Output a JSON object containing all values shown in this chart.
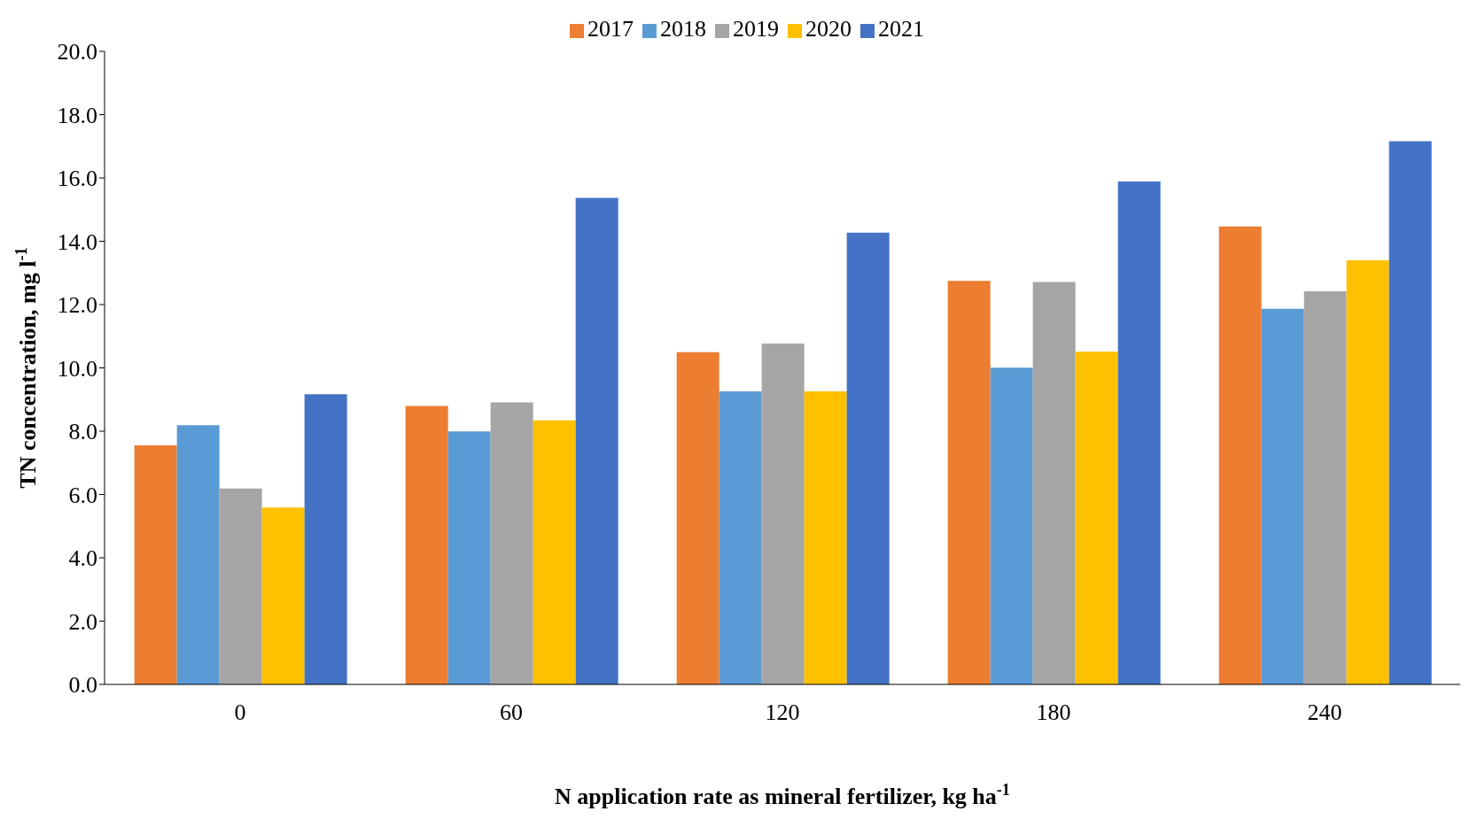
{
  "chart_data": {
    "type": "bar",
    "xlabel": "N application rate as mineral fertilizer, kg ha$^{-1}$",
    "ylabel": "TN concentration,  mg l$^{-1}$",
    "categories": [
      "0",
      "60",
      "120",
      "180",
      "240"
    ],
    "series": [
      {
        "name": "2017",
        "color": "#ed7d31",
        "values": [
          7.55,
          8.8,
          10.5,
          12.75,
          14.47
        ]
      },
      {
        "name": "2018",
        "color": "#5b9bd5",
        "values": [
          8.19,
          7.99,
          9.26,
          10.01,
          11.87
        ]
      },
      {
        "name": "2019",
        "color": "#a5a5a5",
        "values": [
          6.19,
          8.91,
          10.77,
          12.71,
          12.42
        ]
      },
      {
        "name": "2020",
        "color": "#ffc000",
        "values": [
          5.59,
          8.34,
          9.26,
          10.51,
          13.4
        ]
      },
      {
        "name": "2021",
        "color": "#4472c4",
        "values": [
          9.17,
          15.37,
          14.27,
          15.89,
          17.16
        ]
      }
    ],
    "ylim": [
      0,
      20
    ],
    "yticks": [
      {
        "value": 0,
        "label": "0.0"
      },
      {
        "value": 2,
        "label": "2.0"
      },
      {
        "value": 4,
        "label": "4.0"
      },
      {
        "value": 6,
        "label": "6.0"
      },
      {
        "value": 8,
        "label": "8.0"
      },
      {
        "value": 10,
        "label": "10.0"
      },
      {
        "value": 12,
        "label": "12.0"
      },
      {
        "value": 14,
        "label": "14.0"
      },
      {
        "value": 16,
        "label": "16.0"
      },
      {
        "value": 18,
        "label": "18.0"
      },
      {
        "value": 20,
        "label": "20.0"
      }
    ],
    "legend": "top",
    "grid": false
  }
}
